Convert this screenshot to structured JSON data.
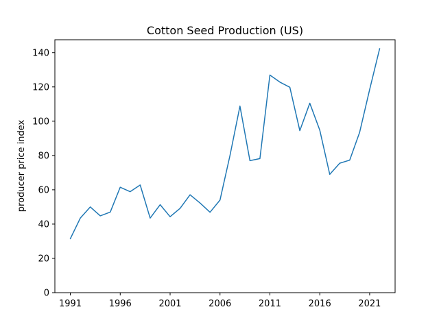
{
  "chart_data": {
    "type": "line",
    "title": "Cotton Seed Production (US)",
    "xlabel": "",
    "ylabel": "producer price index",
    "xlim": [
      1989.45,
      2023.55
    ],
    "ylim": [
      0,
      147.5
    ],
    "x_ticks": [
      1991,
      1996,
      2001,
      2006,
      2011,
      2016,
      2021
    ],
    "y_ticks": [
      0,
      20,
      40,
      60,
      80,
      100,
      120,
      140
    ],
    "grid": false,
    "line_color": "#1f77b4",
    "series": [
      {
        "x": [
          1991,
          1992,
          1993,
          1994,
          1995,
          1996,
          1997,
          1998,
          1999,
          2000,
          2001,
          2002,
          2003,
          2004,
          2005,
          2006,
          2007,
          2008,
          2009,
          2010,
          2011,
          2012,
          2013,
          2014,
          2015,
          2016,
          2017,
          2018,
          2019,
          2020,
          2021,
          2022
        ],
        "values": [
          31.5,
          43.5,
          50,
          44.8,
          47,
          61.5,
          58.9,
          62.8,
          43.5,
          51.3,
          44.3,
          49.2,
          57.1,
          52.3,
          46.9,
          54,
          80,
          108.8,
          77,
          78.2,
          126.9,
          122.8,
          119.8,
          94.5,
          110.5,
          94.8,
          69,
          75.5,
          77.3,
          93.6,
          118.5,
          142.3
        ]
      }
    ]
  }
}
